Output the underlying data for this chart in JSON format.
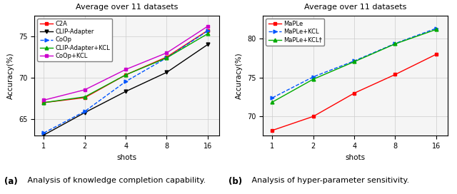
{
  "shots": [
    1,
    2,
    4,
    8,
    16
  ],
  "left": {
    "title": "Average over 11 datasets",
    "xlabel": "shots",
    "ylabel": "Accuracy(%)",
    "ylim": [
      63.0,
      77.5
    ],
    "yticks": [
      65,
      70,
      75
    ],
    "series": [
      {
        "label": "C2A",
        "color": "#ff0000",
        "marker": "s",
        "linestyle": "-",
        "values": [
          67.0,
          67.6,
          70.35,
          72.5,
          75.7
        ]
      },
      {
        "label": "CLIP-Adapter",
        "color": "#000000",
        "marker": "v",
        "linestyle": "-",
        "values": [
          63.1,
          65.8,
          68.35,
          70.65,
          74.0
        ]
      },
      {
        "label": "CoOp",
        "color": "#0055ff",
        "marker": ">",
        "linestyle": "--",
        "values": [
          63.35,
          65.95,
          69.55,
          72.4,
          75.65
        ]
      },
      {
        "label": "CLIP-Adapter+KCL",
        "color": "#00aa00",
        "marker": "^",
        "linestyle": "-",
        "values": [
          67.0,
          67.7,
          70.35,
          72.4,
          75.3
        ]
      },
      {
        "label": "CoOp+KCL",
        "color": "#cc00cc",
        "marker": "s",
        "linestyle": "-",
        "values": [
          67.3,
          68.55,
          71.0,
          73.0,
          76.2
        ]
      }
    ]
  },
  "right": {
    "title": "Average over 11 datasets",
    "xlabel": "shots",
    "ylabel": "Accuracy(%)",
    "ylim": [
      67.5,
      83.0
    ],
    "yticks": [
      70,
      75,
      80
    ],
    "series": [
      {
        "label": "MaPLe",
        "color": "#ff0000",
        "marker": "s",
        "linestyle": "-",
        "values": [
          68.2,
          70.0,
          73.0,
          75.4,
          78.0
        ]
      },
      {
        "label": "MaPLe+KCL",
        "color": "#0055ff",
        "marker": ">",
        "linestyle": "--",
        "values": [
          72.4,
          75.1,
          77.15,
          79.4,
          81.35
        ]
      },
      {
        "label": "MaPLe+KCL†",
        "color": "#00aa00",
        "marker": "^",
        "linestyle": "-",
        "values": [
          71.85,
          74.8,
          77.05,
          79.35,
          81.2
        ]
      }
    ]
  },
  "caption_left_bold": "(a)",
  "caption_left_rest": " Analysis of knowledge completion capability.",
  "caption_right_bold": "(b)",
  "caption_right_rest": " Analysis of hyper-parameter sensitivity."
}
